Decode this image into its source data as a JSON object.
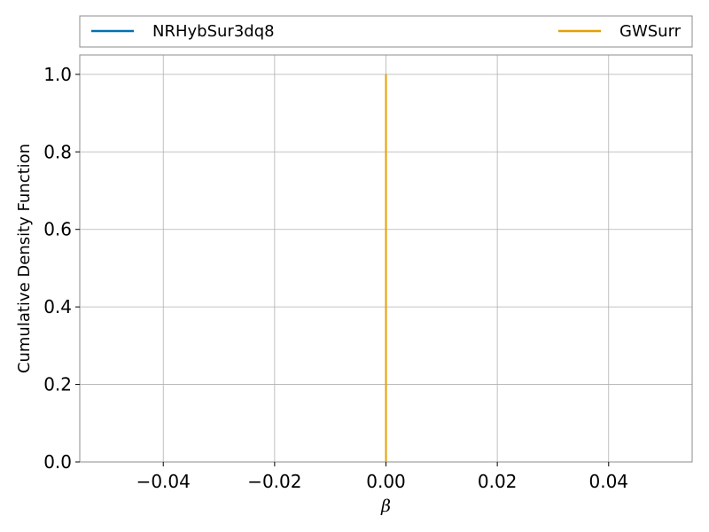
{
  "chart_data": {
    "type": "line",
    "title": "",
    "xlabel": "β",
    "ylabel": "Cumulative Density Function",
    "xlim": [
      -0.055,
      0.055
    ],
    "ylim": [
      0.0,
      1.05
    ],
    "xticks": [
      -0.04,
      -0.02,
      0.0,
      0.02,
      0.04
    ],
    "xtick_labels": [
      "−0.04",
      "−0.02",
      "0.00",
      "0.02",
      "0.04"
    ],
    "yticks": [
      0.0,
      0.2,
      0.4,
      0.6,
      0.8,
      1.0
    ],
    "ytick_labels": [
      "0.0",
      "0.2",
      "0.4",
      "0.6",
      "0.8",
      "1.0"
    ],
    "grid": true,
    "legend_placement": "top, above plot",
    "series": [
      {
        "name": "NRHybSur3dq8",
        "color": "#0072B2",
        "x": [
          0.0,
          0.0
        ],
        "y": [
          0.0,
          1.0
        ]
      },
      {
        "name": "GWSurr",
        "color": "#E69F00",
        "x": [
          0.0,
          0.0
        ],
        "y": [
          0.0,
          1.0
        ]
      }
    ]
  }
}
